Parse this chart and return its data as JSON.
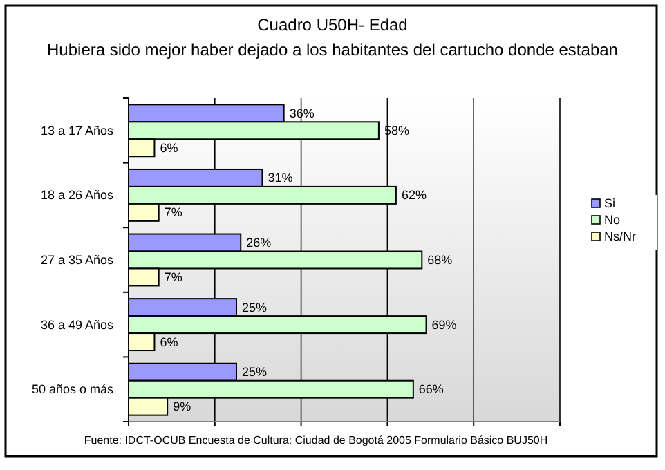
{
  "chart_data": {
    "type": "bar",
    "orientation": "horizontal",
    "title": "Cuadro U50H- Edad",
    "subtitle": "Hubiera sido mejor haber dejado a los habitantes del cartucho donde estaban",
    "categories": [
      "13 a 17 Años",
      "18 a 26 Años",
      "27 a 35 Años",
      "36 a 49 Años",
      "50 años o más"
    ],
    "series": [
      {
        "name": "Si",
        "color": "#9999ff",
        "values": [
          36,
          31,
          26,
          25,
          25
        ],
        "value_labels": [
          "36%",
          "31%",
          "26%",
          "25%",
          "25%"
        ]
      },
      {
        "name": "No",
        "color": "#ccffcc",
        "values": [
          58,
          62,
          68,
          69,
          66
        ],
        "value_labels": [
          "58%",
          "62%",
          "68%",
          "69%",
          "66%"
        ]
      },
      {
        "name": "Ns/Nr",
        "color": "#ffffcc",
        "values": [
          6,
          7,
          7,
          6,
          9
        ],
        "value_labels": [
          "6%",
          "7%",
          "7%",
          "6%",
          "9%"
        ]
      }
    ],
    "xlim": [
      0,
      100
    ],
    "xticks": [
      {
        "value": 0,
        "label": null
      },
      {
        "value": 20,
        "label": null
      },
      {
        "value": 40,
        "label": null
      },
      {
        "value": 60,
        "label": null
      },
      {
        "value": 80,
        "label": null
      },
      {
        "value": 100,
        "label": null
      }
    ],
    "grid": "x",
    "tick_labels": "y",
    "legend": "right",
    "annotations": [
      "Fuente: IDCT-OCUB Encuesta de Cultura: Ciudad de Bogotá 2005 Formulario Básico BUJ50H"
    ]
  }
}
